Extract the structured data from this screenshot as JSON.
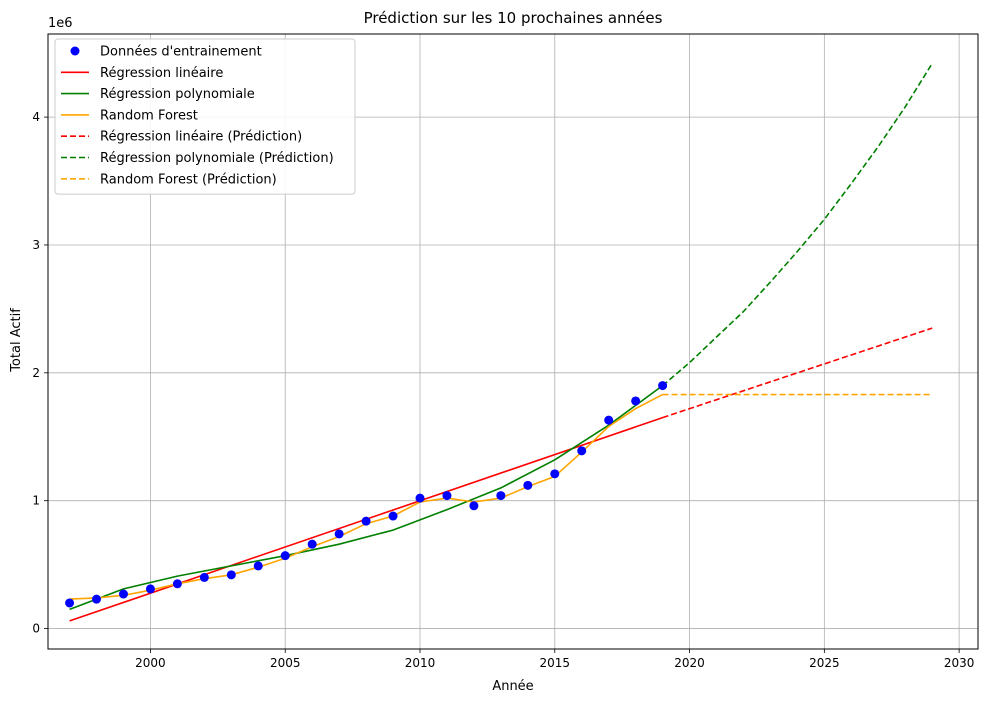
{
  "chart_data": {
    "type": "line",
    "title": "Prédiction sur les 10 prochaines années",
    "xlabel": "Année",
    "ylabel": "Total Actif",
    "y_offset_label": "1e6",
    "xlim": [
      1996.2,
      2030.7
    ],
    "ylim": [
      -0.16,
      4.65
    ],
    "x_ticks": [
      2000,
      2005,
      2010,
      2015,
      2020,
      2025,
      2030
    ],
    "x_tick_labels": [
      "2000",
      "2005",
      "2010",
      "2015",
      "2020",
      "2025",
      "2030"
    ],
    "y_ticks": [
      0,
      1,
      2,
      3,
      4
    ],
    "y_tick_labels": [
      "0",
      "1",
      "2",
      "3",
      "4"
    ],
    "grid": true,
    "legend_position": "upper-left",
    "training": {
      "name": "Données d'entrainement",
      "color": "#0000ff",
      "x": [
        1997,
        1998,
        1999,
        2000,
        2001,
        2002,
        2003,
        2004,
        2005,
        2006,
        2007,
        2008,
        2009,
        2010,
        2011,
        2012,
        2013,
        2014,
        2015,
        2016,
        2017,
        2018,
        2019
      ],
      "y": [
        0.2,
        0.23,
        0.27,
        0.31,
        0.35,
        0.4,
        0.42,
        0.49,
        0.57,
        0.66,
        0.74,
        0.84,
        0.88,
        1.02,
        1.04,
        0.96,
        1.04,
        1.12,
        1.21,
        1.39,
        1.63,
        1.78,
        1.9
      ]
    },
    "series": [
      {
        "name": "Régression linéaire",
        "color": "#ff0000",
        "dash": false,
        "x": [
          1997,
          2019
        ],
        "y": [
          0.06,
          1.65
        ]
      },
      {
        "name": "Régression polynomiale",
        "color": "#008000",
        "dash": false,
        "x": [
          1997,
          1999,
          2001,
          2003,
          2005,
          2007,
          2009,
          2011,
          2013,
          2015,
          2017,
          2019
        ],
        "y": [
          0.15,
          0.31,
          0.41,
          0.49,
          0.57,
          0.66,
          0.77,
          0.93,
          1.1,
          1.32,
          1.59,
          1.9
        ]
      },
      {
        "name": "Random Forest",
        "color": "#ffa500",
        "dash": false,
        "x": [
          1997,
          1998,
          1999,
          2000,
          2001,
          2002,
          2003,
          2004,
          2005,
          2006,
          2007,
          2008,
          2009,
          2010,
          2011,
          2012,
          2013,
          2014,
          2015,
          2016,
          2017,
          2018,
          2019
        ],
        "y": [
          0.23,
          0.24,
          0.26,
          0.3,
          0.35,
          0.39,
          0.42,
          0.48,
          0.55,
          0.64,
          0.72,
          0.82,
          0.88,
          0.99,
          1.02,
          0.99,
          1.02,
          1.11,
          1.19,
          1.38,
          1.58,
          1.72,
          1.83
        ]
      },
      {
        "name": "Régression linéaire (Prédiction)",
        "color": "#ff0000",
        "dash": true,
        "x": [
          2019,
          2029
        ],
        "y": [
          1.65,
          2.35
        ]
      },
      {
        "name": "Régression polynomiale (Prédiction)",
        "color": "#008000",
        "dash": true,
        "x": [
          2019,
          2020,
          2021,
          2022,
          2023,
          2024,
          2025,
          2026,
          2027,
          2028,
          2029
        ],
        "y": [
          1.9,
          2.08,
          2.28,
          2.48,
          2.71,
          2.95,
          3.2,
          3.48,
          3.77,
          4.08,
          4.42
        ]
      },
      {
        "name": "Random Forest (Prédiction)",
        "color": "#ffa500",
        "dash": true,
        "x": [
          2019,
          2029
        ],
        "y": [
          1.83,
          1.83
        ]
      }
    ]
  }
}
